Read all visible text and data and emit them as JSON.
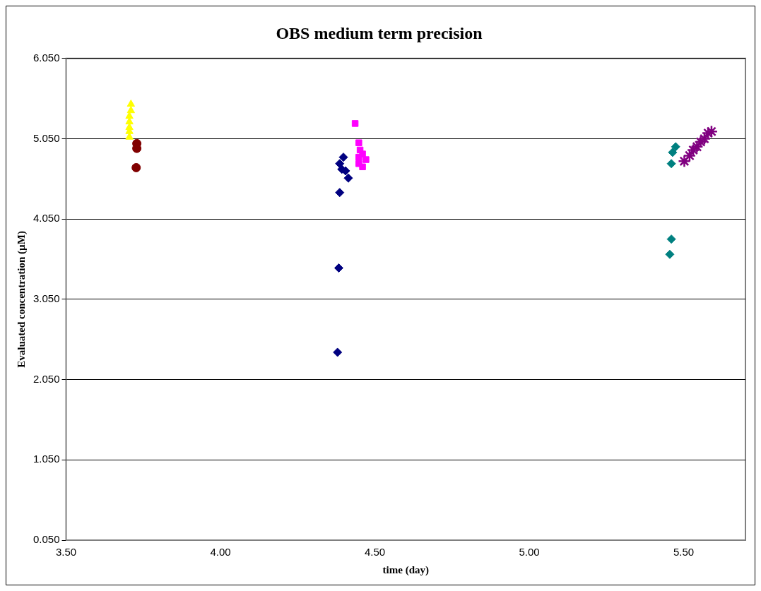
{
  "chart_data": {
    "type": "scatter",
    "title": "OBS medium term precision",
    "xlabel": "time (day)",
    "ylabel": "Evaluated concentration (µM)",
    "xlim": [
      3.5,
      5.7
    ],
    "xticks": [
      {
        "value": 3.5,
        "label": "3.50"
      },
      {
        "value": 4,
        "label": "4.00"
      },
      {
        "value": 4.5,
        "label": "4.50"
      },
      {
        "value": 5,
        "label": "5.00"
      },
      {
        "value": 5.5,
        "label": "5.50"
      }
    ],
    "ylim": [
      0.05,
      6.05
    ],
    "yticks": [
      {
        "value": 0.05,
        "label": "0.050"
      },
      {
        "value": 1.05,
        "label": "1.050"
      },
      {
        "value": 2.05,
        "label": "2.050"
      },
      {
        "value": 3.05,
        "label": "3.050"
      },
      {
        "value": 4.05,
        "label": "4.050"
      },
      {
        "value": 5.05,
        "label": "5.050"
      },
      {
        "value": 6.05,
        "label": "6.050"
      }
    ],
    "grid": "y",
    "legend": false,
    "series": [
      {
        "color": "#ffff00",
        "marker": "triangle",
        "x": [
          3.71,
          3.71,
          3.705,
          3.705,
          3.705,
          3.705,
          3.705
        ],
        "values": [
          5.48,
          5.4,
          5.33,
          5.26,
          5.19,
          5.14,
          5.07
        ]
      },
      {
        "color": "#800000",
        "marker": "circle",
        "x": [
          3.729,
          3.729,
          3.727
        ],
        "values": [
          4.99,
          4.93,
          4.69
        ]
      },
      {
        "color": "#000080",
        "marker": "diamond",
        "x": [
          4.398,
          4.386,
          4.393,
          4.405,
          4.414,
          4.386,
          4.383,
          4.379
        ],
        "values": [
          4.82,
          4.74,
          4.67,
          4.65,
          4.56,
          4.38,
          3.44,
          2.39
        ]
      },
      {
        "color": "#ff00ff",
        "marker": "square",
        "x": [
          4.436,
          4.448,
          4.452,
          4.46,
          4.448,
          4.471,
          4.448,
          4.46
        ],
        "values": [
          5.24,
          5.0,
          4.91,
          4.86,
          4.82,
          4.79,
          4.74,
          4.7
        ]
      },
      {
        "color": "#008080",
        "marker": "diamond",
        "x": [
          5.474,
          5.464,
          5.46,
          5.46,
          5.455
        ],
        "values": [
          4.95,
          4.88,
          4.74,
          3.8,
          3.61
        ]
      },
      {
        "color": "#800080",
        "marker": "cross",
        "x": [
          5.502,
          5.519,
          5.531,
          5.543,
          5.555,
          5.567,
          5.579,
          5.59
        ],
        "values": [
          4.77,
          4.84,
          4.91,
          4.95,
          5.01,
          5.05,
          5.12,
          5.14
        ]
      }
    ]
  }
}
